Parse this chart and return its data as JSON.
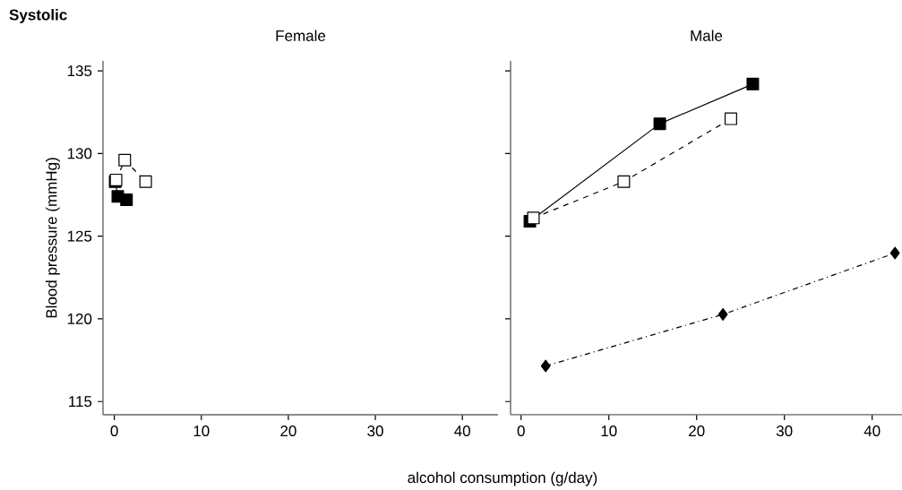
{
  "chart_data": [
    {
      "type": "line",
      "title": "Female",
      "xlabel": "alcohol consumption (g/day)",
      "ylabel": "Blood pressure (mmHg)",
      "annotations": [
        "Systolic"
      ],
      "xlim": [
        -1.3,
        44.1
      ],
      "ylim": [
        114.2,
        135.6
      ],
      "xticks": [
        0,
        10,
        20,
        30,
        40
      ],
      "yticks": [
        115,
        120,
        125,
        130,
        135
      ],
      "series": [
        {
          "color": "#000000",
          "marker": "square",
          "line_style": "solid",
          "x": [
            0.1,
            0.4,
            1.4
          ],
          "values": [
            128.3,
            127.4,
            127.2
          ]
        },
        {
          "color": "#000000",
          "marker": "square",
          "line_style": "dashed",
          "x": [
            0.2,
            1.2,
            3.6
          ],
          "values": [
            128.4,
            129.6,
            128.3
          ]
        }
      ]
    },
    {
      "type": "line",
      "title": "Male",
      "xlim": [
        -1.2,
        43.4
      ],
      "ylim": [
        114.2,
        135.6
      ],
      "xticks": [
        0,
        10,
        20,
        30,
        40
      ],
      "yticks": [
        115,
        120,
        125,
        130,
        135
      ],
      "tick_labels": "x",
      "series": [
        {
          "color": "#000000",
          "marker": "square",
          "line_style": "solid",
          "x": [
            1.0,
            15.8,
            26.4
          ],
          "values": [
            125.9,
            131.8,
            134.2
          ]
        },
        {
          "color": "#000000",
          "marker": "square",
          "line_style": "dashed",
          "x": [
            1.4,
            11.7,
            23.9
          ],
          "values": [
            126.1,
            128.3,
            132.1
          ]
        },
        {
          "color": "#000000",
          "marker": "diamond",
          "line_style": "dashdot",
          "x": [
            2.8,
            23.0,
            42.6
          ],
          "values": [
            117.15,
            120.27,
            123.98
          ]
        }
      ]
    }
  ]
}
